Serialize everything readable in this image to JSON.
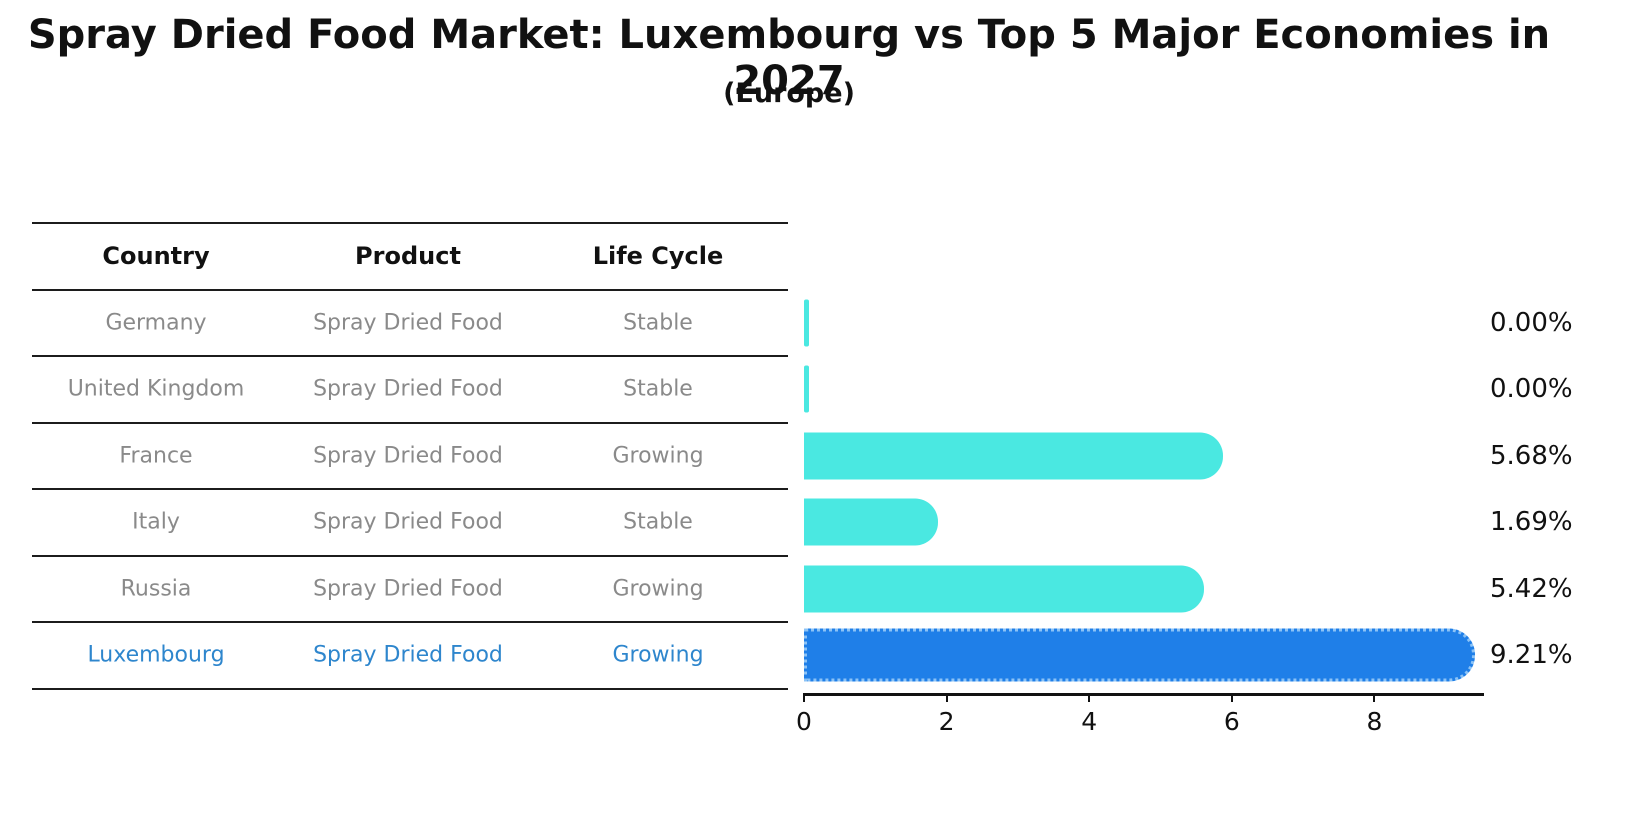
{
  "title": "Spray Dried Food Market: Luxembourg vs Top 5 Major Economies in 2027",
  "subtitle": "(Europe)",
  "table": {
    "headers": [
      "Country",
      "Product",
      "Life Cycle"
    ],
    "rows": [
      {
        "country": "Germany",
        "product": "Spray Dried Food",
        "life_cycle": "Stable",
        "highlight": false
      },
      {
        "country": "United Kingdom",
        "product": "Spray Dried Food",
        "life_cycle": "Stable",
        "highlight": false
      },
      {
        "country": "France",
        "product": "Spray Dried Food",
        "life_cycle": "Growing",
        "highlight": false
      },
      {
        "country": "Italy",
        "product": "Spray Dried Food",
        "life_cycle": "Stable",
        "highlight": false
      },
      {
        "country": "Russia",
        "product": "Spray Dried Food",
        "life_cycle": "Growing",
        "highlight": false
      },
      {
        "country": "Luxembourg",
        "product": "Spray Dried Food",
        "life_cycle": "Growing",
        "highlight": true
      }
    ]
  },
  "chart_data": {
    "type": "bar",
    "orientation": "horizontal",
    "title": "Spray Dried Food Market: Luxembourg vs Top 5 Major Economies in 2027 (Europe)",
    "categories": [
      "Germany",
      "United Kingdom",
      "France",
      "Italy",
      "Russia",
      "Luxembourg"
    ],
    "values": [
      0.0,
      0.0,
      5.68,
      1.69,
      5.42,
      9.21
    ],
    "value_labels": [
      "0.00%",
      "0.00%",
      "5.68%",
      "1.69%",
      "5.42%",
      "9.21%"
    ],
    "highlight_index": 5,
    "x_ticks": [
      "0",
      "2",
      "4",
      "6",
      "8"
    ],
    "x_tick_values": [
      0,
      2,
      4,
      6,
      8
    ],
    "xlim": [
      0,
      9.52
    ],
    "grid": false,
    "legend": "none",
    "colors": {
      "bar_default": "#4ae8e1",
      "bar_highlight": "#1f7fe8",
      "bar_highlight_border": "#8cc3f6",
      "text_muted": "#8a8a8a",
      "text_highlight": "#2e86cd",
      "text_primary": "#111111"
    }
  }
}
